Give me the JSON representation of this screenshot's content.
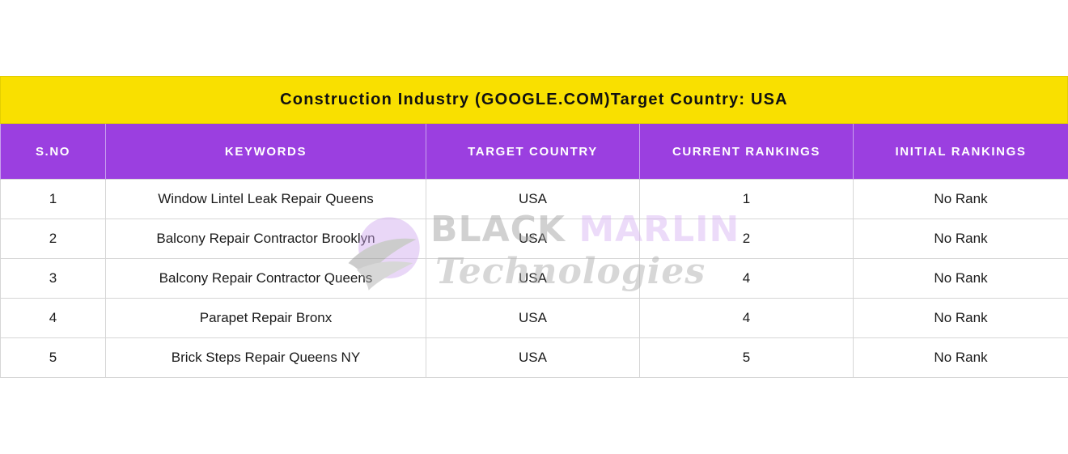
{
  "title": "Construction Industry (GOOGLE.COM)Target Country: USA",
  "columns": [
    "S.NO",
    "KEYWORDS",
    "TARGET COUNTRY",
    "CURRENT RANKINGS",
    "INITIAL RANKINGS"
  ],
  "rows": [
    {
      "sno": "1",
      "keyword": "Window Lintel Leak Repair Queens",
      "country": "USA",
      "current": "1",
      "initial": "No Rank"
    },
    {
      "sno": "2",
      "keyword": "Balcony Repair Contractor Brooklyn",
      "country": "USA",
      "current": "2",
      "initial": "No Rank"
    },
    {
      "sno": "3",
      "keyword": "Balcony Repair Contractor Queens",
      "country": "USA",
      "current": "4",
      "initial": "No Rank"
    },
    {
      "sno": "4",
      "keyword": "Parapet Repair Bronx",
      "country": "USA",
      "current": "4",
      "initial": "No Rank"
    },
    {
      "sno": "5",
      "keyword": "Brick Steps Repair Queens NY",
      "country": "USA",
      "current": "5",
      "initial": "No Rank"
    }
  ],
  "watermark": {
    "word1": "BLACK",
    "word2": "MARLIN",
    "word3": "Technologies"
  },
  "colors": {
    "title_bg": "#f9e000",
    "header_bg": "#9b3fe0"
  }
}
